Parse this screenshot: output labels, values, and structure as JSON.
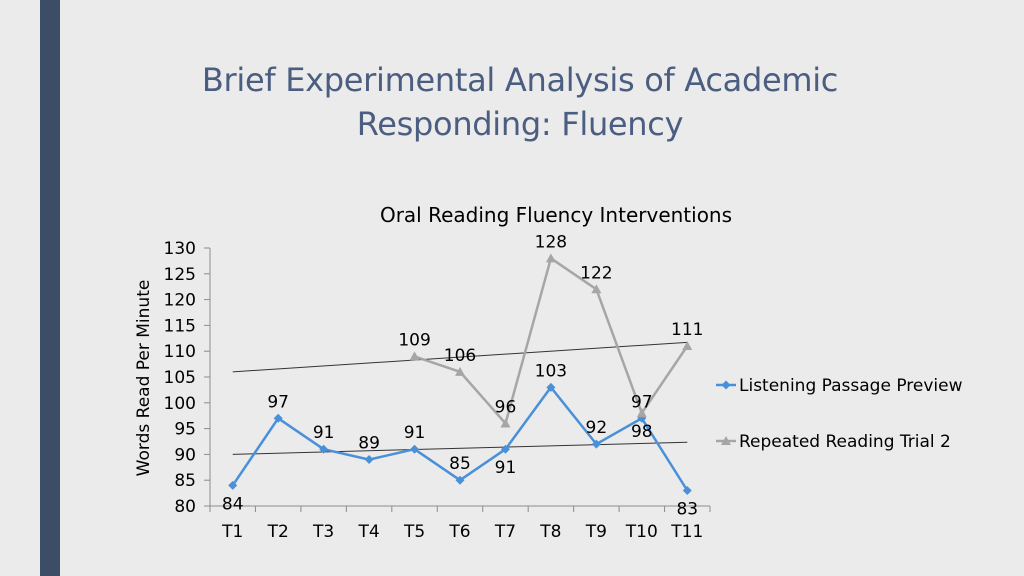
{
  "slide": {
    "title_line1": "Brief Experimental Analysis of Academic",
    "title_line2": "Responding: Fluency",
    "accent_color": "#3d4d66",
    "title_color": "#4b5d80"
  },
  "chart_data": {
    "type": "line",
    "title": "Oral Reading Fluency Interventions",
    "xlabel": "",
    "ylabel": "Words Read Per Minute",
    "categories": [
      "T1",
      "T2",
      "T3",
      "T4",
      "T5",
      "T6",
      "T7",
      "T8",
      "T9",
      "T10",
      "T11"
    ],
    "ylim": [
      80,
      130
    ],
    "yticks": [
      80,
      85,
      90,
      95,
      100,
      105,
      110,
      115,
      120,
      125,
      130
    ],
    "grid": false,
    "legend_position": "right",
    "series": [
      {
        "name": "Listening Passage Preview",
        "color": "#4a90d9",
        "marker": "diamond",
        "values": [
          84,
          97,
          91,
          89,
          91,
          85,
          91,
          103,
          92,
          97,
          83
        ],
        "trendline": true
      },
      {
        "name": "Repeated Reading Trial 2",
        "color": "#a6a6a6",
        "marker": "triangle",
        "values": [
          null,
          null,
          null,
          null,
          109,
          106,
          96,
          128,
          122,
          98,
          111
        ],
        "trendline": true
      }
    ]
  }
}
